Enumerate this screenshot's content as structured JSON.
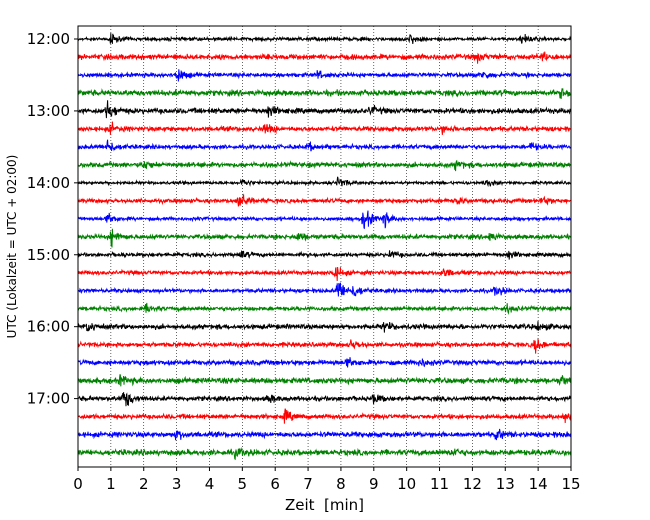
{
  "chart_data": {
    "type": "line",
    "title": "",
    "xlabel": "Zeit  [min]",
    "ylabel": "UTC (Lokalzeit = UTC + 02:00)",
    "xlim": [
      0,
      15
    ],
    "x_ticks": [
      "0",
      "1",
      "2",
      "3",
      "4",
      "5",
      "6",
      "7",
      "8",
      "9",
      "10",
      "11",
      "12",
      "13",
      "14",
      "15"
    ],
    "y_tick_labels": [
      "12:00",
      "13:00",
      "14:00",
      "15:00",
      "16:00",
      "17:00"
    ],
    "y_ticks_row_index": [
      0,
      4,
      8,
      12,
      16,
      20
    ],
    "grid": {
      "x_dotted_vertical": true
    },
    "row_interval_minutes": 15,
    "start_time": "12:00",
    "colors_cycle": [
      "#000000",
      "#ff0000",
      "#0000ff",
      "#008000"
    ],
    "rows": [
      {
        "start": "12:00",
        "color": "#000000",
        "amp": 0.18,
        "events": [
          {
            "t": 1.0,
            "a": 0.55
          },
          {
            "t": 10.1,
            "a": 0.55
          },
          {
            "t": 13.5,
            "a": 0.5
          }
        ]
      },
      {
        "start": "12:15",
        "color": "#ff0000",
        "amp": 0.28,
        "events": [
          {
            "t": 12.1,
            "a": 0.45
          },
          {
            "t": 14.1,
            "a": 0.4
          }
        ]
      },
      {
        "start": "12:30",
        "color": "#0000ff",
        "amp": 0.22,
        "events": [
          {
            "t": 3.0,
            "a": 0.9
          },
          {
            "t": 7.3,
            "a": 0.4
          },
          {
            "t": 12.3,
            "a": 0.45
          }
        ]
      },
      {
        "start": "12:45",
        "color": "#008000",
        "amp": 0.3,
        "events": [
          {
            "t": 14.7,
            "a": 0.5
          }
        ]
      },
      {
        "start": "13:00",
        "color": "#000000",
        "amp": 0.28,
        "events": [
          {
            "t": 0.9,
            "a": 1.0
          },
          {
            "t": 5.8,
            "a": 0.6
          },
          {
            "t": 8.9,
            "a": 0.45
          }
        ]
      },
      {
        "start": "13:15",
        "color": "#ff0000",
        "amp": 0.25,
        "events": [
          {
            "t": 1.0,
            "a": 0.5
          },
          {
            "t": 5.7,
            "a": 0.55
          },
          {
            "t": 11.1,
            "a": 0.4
          }
        ]
      },
      {
        "start": "13:30",
        "color": "#0000ff",
        "amp": 0.22,
        "events": [
          {
            "t": 0.9,
            "a": 0.9
          },
          {
            "t": 7.0,
            "a": 0.45
          },
          {
            "t": 13.8,
            "a": 0.45
          }
        ]
      },
      {
        "start": "13:45",
        "color": "#008000",
        "amp": 0.26,
        "events": [
          {
            "t": 2.0,
            "a": 0.5
          },
          {
            "t": 11.5,
            "a": 0.45
          }
        ]
      },
      {
        "start": "14:00",
        "color": "#000000",
        "amp": 0.16,
        "events": [
          {
            "t": 5.0,
            "a": 0.45
          },
          {
            "t": 7.9,
            "a": 0.65
          },
          {
            "t": 12.4,
            "a": 0.4
          }
        ]
      },
      {
        "start": "14:15",
        "color": "#ff0000",
        "amp": 0.22,
        "events": [
          {
            "t": 4.9,
            "a": 1.2
          },
          {
            "t": 11.5,
            "a": 0.45
          },
          {
            "t": 14.1,
            "a": 0.4
          }
        ]
      },
      {
        "start": "14:30",
        "color": "#0000ff",
        "amp": 0.18,
        "events": [
          {
            "t": 0.9,
            "a": 0.7
          },
          {
            "t": 8.7,
            "a": 1.35
          },
          {
            "t": 9.3,
            "a": 0.9
          }
        ]
      },
      {
        "start": "14:45",
        "color": "#008000",
        "amp": 0.24,
        "events": [
          {
            "t": 1.0,
            "a": 1.0
          },
          {
            "t": 6.7,
            "a": 0.5
          },
          {
            "t": 12.5,
            "a": 0.45
          }
        ]
      },
      {
        "start": "15:00",
        "color": "#000000",
        "amp": 0.2,
        "events": [
          {
            "t": 4.9,
            "a": 0.55
          },
          {
            "t": 9.5,
            "a": 0.4
          },
          {
            "t": 13.1,
            "a": 0.45
          }
        ]
      },
      {
        "start": "15:15",
        "color": "#ff0000",
        "amp": 0.22,
        "events": [
          {
            "t": 7.8,
            "a": 0.9
          },
          {
            "t": 11.1,
            "a": 0.6
          }
        ]
      },
      {
        "start": "15:30",
        "color": "#0000ff",
        "amp": 0.2,
        "events": [
          {
            "t": 7.9,
            "a": 1.4
          },
          {
            "t": 8.4,
            "a": 0.8
          },
          {
            "t": 12.7,
            "a": 0.6
          }
        ]
      },
      {
        "start": "15:45",
        "color": "#008000",
        "amp": 0.22,
        "events": [
          {
            "t": 2.1,
            "a": 0.45
          },
          {
            "t": 13.0,
            "a": 0.45
          }
        ]
      },
      {
        "start": "16:00",
        "color": "#000000",
        "amp": 0.26,
        "events": [
          {
            "t": 0.3,
            "a": 0.6
          },
          {
            "t": 9.3,
            "a": 0.5
          },
          {
            "t": 14.0,
            "a": 0.5
          }
        ]
      },
      {
        "start": "16:15",
        "color": "#ff0000",
        "amp": 0.24,
        "events": [
          {
            "t": 8.3,
            "a": 0.55
          },
          {
            "t": 13.9,
            "a": 0.7
          }
        ]
      },
      {
        "start": "16:30",
        "color": "#0000ff",
        "amp": 0.26,
        "events": [
          {
            "t": 8.2,
            "a": 0.6
          },
          {
            "t": 10.4,
            "a": 0.45
          }
        ]
      },
      {
        "start": "16:45",
        "color": "#008000",
        "amp": 0.3,
        "events": [
          {
            "t": 1.3,
            "a": 0.5
          },
          {
            "t": 14.7,
            "a": 0.5
          }
        ]
      },
      {
        "start": "17:00",
        "color": "#000000",
        "amp": 0.24,
        "events": [
          {
            "t": 1.4,
            "a": 1.2
          },
          {
            "t": 5.8,
            "a": 0.45
          },
          {
            "t": 9.0,
            "a": 0.45
          }
        ]
      },
      {
        "start": "17:15",
        "color": "#ff0000",
        "amp": 0.24,
        "events": [
          {
            "t": 6.3,
            "a": 0.6
          },
          {
            "t": 14.8,
            "a": 0.45
          }
        ]
      },
      {
        "start": "17:30",
        "color": "#0000ff",
        "amp": 0.28,
        "events": [
          {
            "t": 3.0,
            "a": 0.45
          },
          {
            "t": 12.7,
            "a": 0.6
          }
        ]
      },
      {
        "start": "17:45",
        "color": "#008000",
        "amp": 0.3,
        "events": [
          {
            "t": 4.8,
            "a": 0.45
          },
          {
            "t": 11.4,
            "a": 0.45
          }
        ]
      }
    ]
  }
}
